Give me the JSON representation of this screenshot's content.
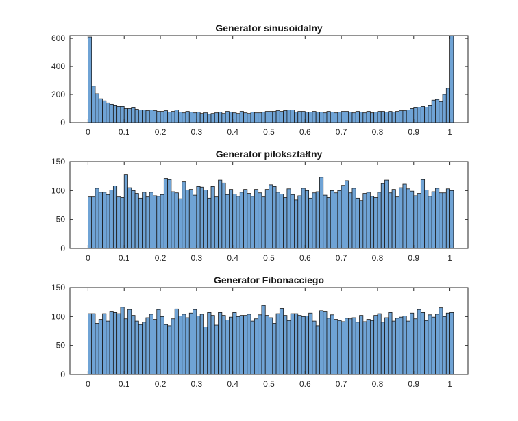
{
  "colors": {
    "bar_fill": "#6fa3d5",
    "bar_edge": "#1a1a1a",
    "axis": "#262626"
  },
  "chart_data": [
    {
      "type": "bar",
      "title": "Generator sinusoidalny",
      "xlabel": "",
      "ylabel": "",
      "xlim": [
        -0.05,
        1.05
      ],
      "ylim": [
        0,
        620
      ],
      "xticks": [
        0,
        0.1,
        0.2,
        0.3,
        0.4,
        0.5,
        0.6,
        0.7,
        0.8,
        0.9,
        1
      ],
      "xtick_labels": [
        "0",
        "0.1",
        "0.2",
        "0.3",
        "0.4",
        "0.5",
        "0.6",
        "0.7",
        "0.8",
        "0.9",
        "1"
      ],
      "yticks": [
        0,
        200,
        400,
        600
      ],
      "ytick_labels": [
        "0",
        "200",
        "400",
        "600"
      ],
      "bin_start": 0,
      "bin_width": 0.01,
      "values": [
        610,
        260,
        205,
        170,
        155,
        140,
        130,
        120,
        115,
        115,
        100,
        100,
        105,
        95,
        90,
        90,
        85,
        90,
        85,
        80,
        80,
        85,
        75,
        80,
        90,
        75,
        70,
        80,
        75,
        70,
        75,
        65,
        70,
        60,
        65,
        70,
        75,
        65,
        80,
        75,
        70,
        65,
        80,
        70,
        65,
        75,
        70,
        70,
        75,
        80,
        80,
        80,
        85,
        80,
        85,
        90,
        90,
        75,
        80,
        80,
        75,
        75,
        80,
        75,
        75,
        70,
        80,
        75,
        70,
        75,
        80,
        80,
        75,
        70,
        80,
        75,
        70,
        80,
        70,
        75,
        80,
        80,
        75,
        80,
        75,
        80,
        85,
        85,
        90,
        100,
        105,
        110,
        115,
        110,
        120,
        160,
        165,
        150,
        200,
        245,
        620
      ]
    },
    {
      "type": "bar",
      "title": "Generator piłokształtny",
      "xlabel": "",
      "ylabel": "",
      "xlim": [
        -0.05,
        1.05
      ],
      "ylim": [
        0,
        150
      ],
      "xticks": [
        0,
        0.1,
        0.2,
        0.3,
        0.4,
        0.5,
        0.6,
        0.7,
        0.8,
        0.9,
        1
      ],
      "xtick_labels": [
        "0",
        "0.1",
        "0.2",
        "0.3",
        "0.4",
        "0.5",
        "0.6",
        "0.7",
        "0.8",
        "0.9",
        "1"
      ],
      "yticks": [
        0,
        50,
        100,
        150
      ],
      "ytick_labels": [
        "0",
        "50",
        "100",
        "150"
      ],
      "bin_start": 0,
      "bin_width": 0.01,
      "values": [
        89,
        89,
        104,
        97,
        97,
        93,
        101,
        108,
        89,
        88,
        128,
        105,
        100,
        95,
        87,
        97,
        89,
        97,
        91,
        90,
        93,
        121,
        119,
        98,
        96,
        86,
        115,
        101,
        102,
        92,
        107,
        106,
        101,
        87,
        107,
        89,
        118,
        113,
        93,
        102,
        94,
        90,
        97,
        102,
        95,
        90,
        102,
        96,
        89,
        102,
        110,
        107,
        97,
        94,
        88,
        103,
        93,
        84,
        91,
        104,
        100,
        87,
        96,
        98,
        123,
        92,
        88,
        100,
        96,
        100,
        109,
        117,
        96,
        104,
        87,
        83,
        95,
        97,
        90,
        88,
        97,
        112,
        118,
        96,
        102,
        89,
        105,
        111,
        103,
        99,
        91,
        95,
        119,
        101,
        90,
        98,
        104,
        96,
        96,
        103,
        100
      ]
    },
    {
      "type": "bar",
      "title": "Generator Fibonacciego",
      "xlabel": "",
      "ylabel": "",
      "xlim": [
        -0.05,
        1.05
      ],
      "ylim": [
        0,
        150
      ],
      "xticks": [
        0,
        0.1,
        0.2,
        0.3,
        0.4,
        0.5,
        0.6,
        0.7,
        0.8,
        0.9,
        1
      ],
      "xtick_labels": [
        "0",
        "0.1",
        "0.2",
        "0.3",
        "0.4",
        "0.5",
        "0.6",
        "0.7",
        "0.8",
        "0.9",
        "1"
      ],
      "yticks": [
        0,
        50,
        100,
        150
      ],
      "ytick_labels": [
        "0",
        "50",
        "100",
        "150"
      ],
      "bin_start": 0,
      "bin_width": 0.01,
      "values": [
        105,
        105,
        88,
        95,
        105,
        92,
        108,
        107,
        105,
        116,
        96,
        112,
        102,
        92,
        86,
        90,
        98,
        104,
        95,
        112,
        100,
        86,
        84,
        96,
        113,
        101,
        104,
        98,
        106,
        112,
        101,
        104,
        82,
        107,
        102,
        85,
        107,
        102,
        94,
        99,
        107,
        100,
        102,
        102,
        104,
        92,
        96,
        103,
        119,
        102,
        98,
        88,
        105,
        114,
        102,
        93,
        105,
        105,
        102,
        100,
        101,
        106,
        92,
        84,
        110,
        108,
        97,
        103,
        95,
        93,
        91,
        97,
        96,
        98,
        90,
        102,
        91,
        95,
        93,
        102,
        105,
        90,
        98,
        107,
        92,
        97,
        99,
        101,
        92,
        106,
        96,
        112,
        107,
        93,
        103,
        99,
        104,
        115,
        100,
        106,
        107
      ]
    }
  ]
}
